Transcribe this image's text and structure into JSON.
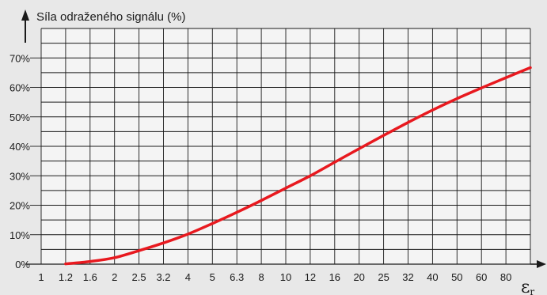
{
  "chart_data": {
    "type": "line",
    "ylabel": "Síla odraženého signálu (%)",
    "xlabel_main": "ε",
    "xlabel_sub": "r",
    "x_scale": "log",
    "x_ticks": [
      "1",
      "1.2",
      "1.6",
      "2",
      "2.5",
      "3.2",
      "4",
      "5",
      "6.3",
      "8",
      "10",
      "12",
      "16",
      "20",
      "25",
      "32",
      "40",
      "50",
      "60",
      "80"
    ],
    "y_ticks": [
      "0%",
      "10%",
      "20%",
      "30%",
      "40%",
      "50%",
      "60%",
      "70%"
    ],
    "ylim": [
      0,
      80
    ],
    "grid": true,
    "line_color": "#e8191f",
    "series": [
      {
        "values": [
          {
            "x": 1.2,
            "y": 0.1
          },
          {
            "x": 1.6,
            "y": 0.9
          },
          {
            "x": 2,
            "y": 2.2
          },
          {
            "x": 2.5,
            "y": 4.6
          },
          {
            "x": 3.2,
            "y": 7.2
          },
          {
            "x": 4,
            "y": 10.2
          },
          {
            "x": 5,
            "y": 13.8
          },
          {
            "x": 6.3,
            "y": 17.6
          },
          {
            "x": 8,
            "y": 21.6
          },
          {
            "x": 10,
            "y": 25.8
          },
          {
            "x": 12,
            "y": 30.0
          },
          {
            "x": 16,
            "y": 34.6
          },
          {
            "x": 20,
            "y": 39.2
          },
          {
            "x": 25,
            "y": 43.7
          },
          {
            "x": 32,
            "y": 48.1
          },
          {
            "x": 40,
            "y": 52.3
          },
          {
            "x": 50,
            "y": 56.2
          },
          {
            "x": 60,
            "y": 59.8
          },
          {
            "x": 80,
            "y": 63.3
          },
          {
            "x": 100,
            "y": 66.7
          }
        ]
      }
    ]
  }
}
